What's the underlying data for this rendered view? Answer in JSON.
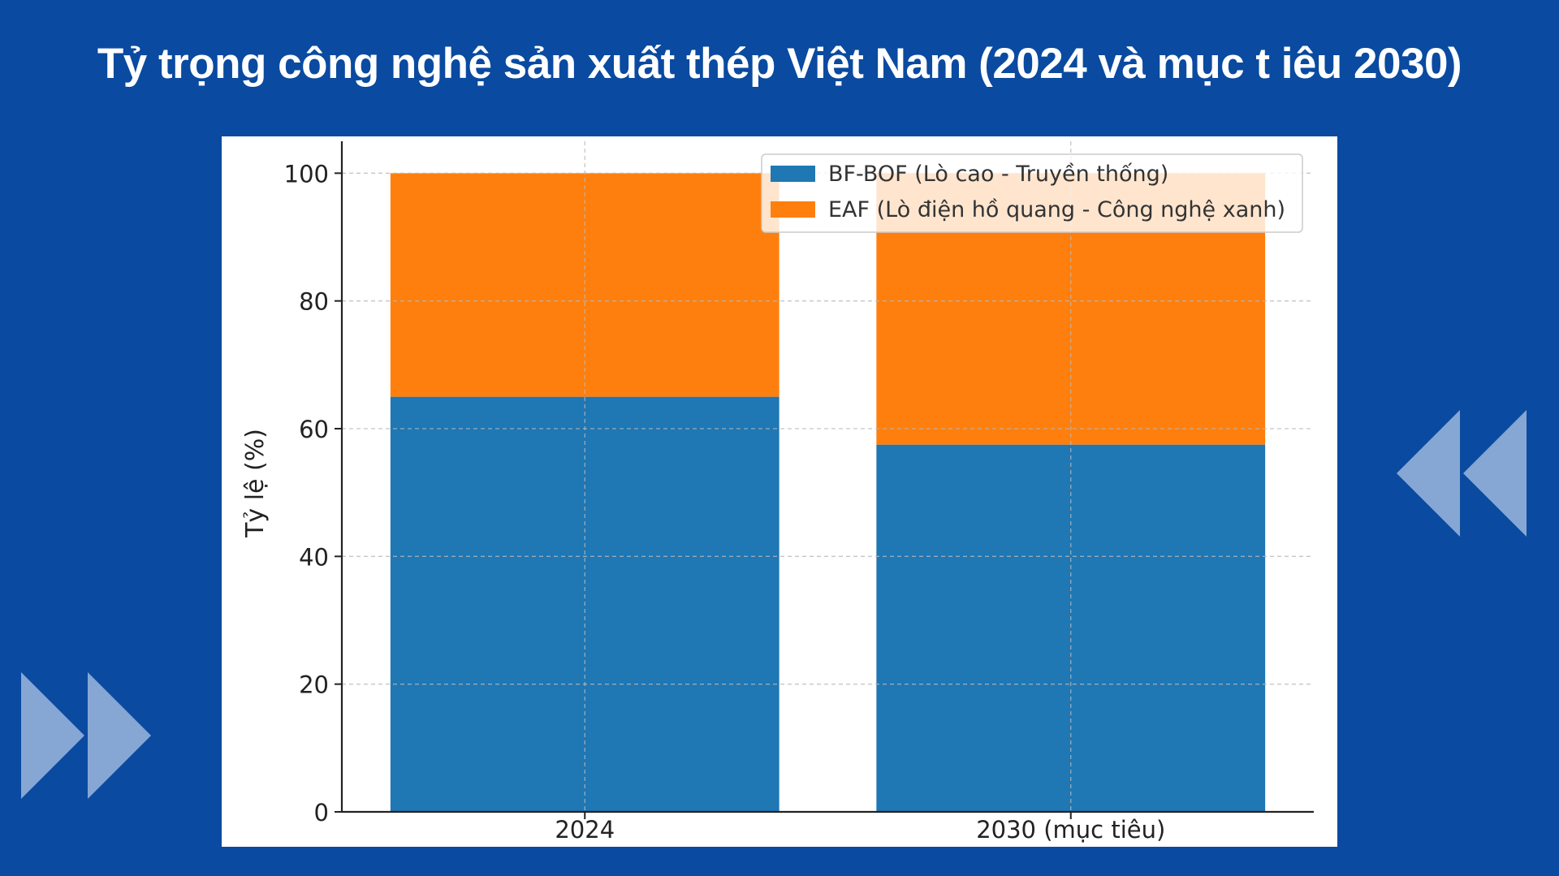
{
  "title": "Tỷ trọng công nghệ sản xuất thép Việt Nam (2024 và mục t iêu 2030)",
  "chart_data": {
    "type": "bar",
    "stacked": true,
    "categories": [
      "2024",
      "2030 (mục tiêu)"
    ],
    "series": [
      {
        "name": "BF-BOF (Lò cao - Truyền thống)",
        "values": [
          65,
          57.5
        ],
        "color": "#1f77b4"
      },
      {
        "name": "EAF (Lò điện hồ quang - Công nghệ xanh)",
        "values": [
          35,
          42.5
        ],
        "color": "#ff7f0e"
      }
    ],
    "xlabel": "",
    "ylabel": "Tỷ lệ (%)",
    "ylim": [
      0,
      105
    ],
    "yticks": [
      0,
      20,
      40,
      60,
      80,
      100
    ],
    "grid": true,
    "legend": "top-right"
  },
  "colors": {
    "background": "#0a4aa0",
    "decoration": "#86a7d4"
  },
  "decorations": {
    "left": "double-chevron-right-icon",
    "right": "double-chevron-left-icon"
  }
}
